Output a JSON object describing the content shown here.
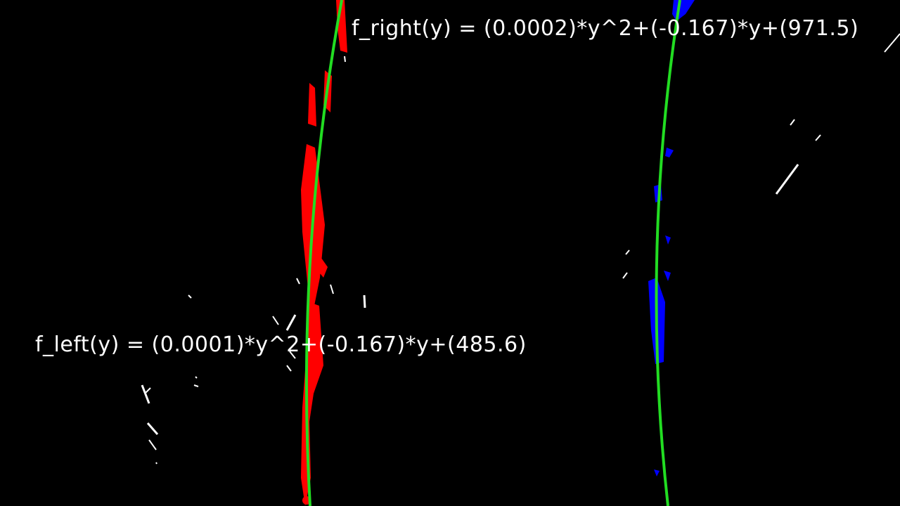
{
  "equations": {
    "right": "f_right(y) = (0.0002)*y^2+(-0.167)*y+(971.5)",
    "left": "f_left(y) = (0.0001)*y^2+(-0.167)*y+(485.6)"
  },
  "colors": {
    "background": "#000000",
    "fit_line": "#22dd22",
    "left_pixels": "#ff0000",
    "right_pixels": "#0000ff",
    "other_pixels": "#ffffff",
    "text": "#ffffff"
  }
}
